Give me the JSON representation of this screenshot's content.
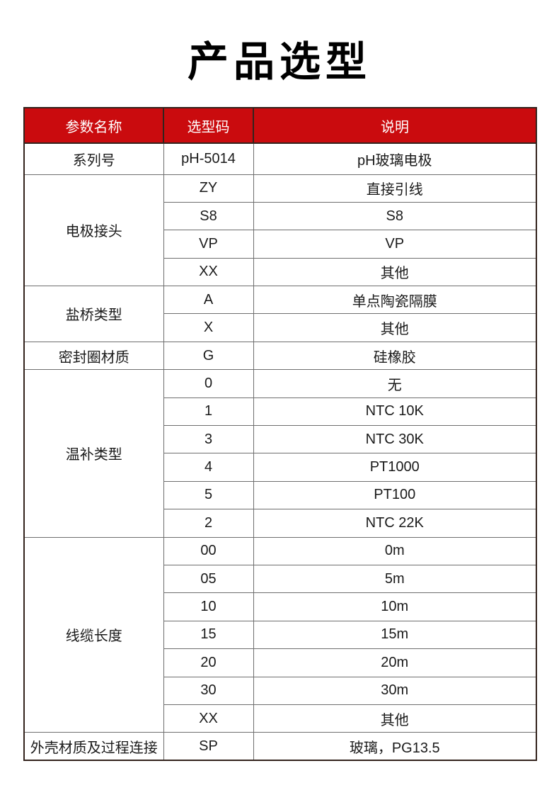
{
  "page": {
    "title": "产品选型"
  },
  "table": {
    "headers": [
      "参数名称",
      "选型码",
      "说明"
    ],
    "groups": [
      {
        "param": "系列号",
        "options": [
          {
            "code": "pH-5014",
            "desc": "pH玻璃电极"
          }
        ]
      },
      {
        "param": "电极接头",
        "options": [
          {
            "code": "ZY",
            "desc": "直接引线"
          },
          {
            "code": "S8",
            "desc": "S8"
          },
          {
            "code": "VP",
            "desc": "VP"
          },
          {
            "code": "XX",
            "desc": "其他"
          }
        ]
      },
      {
        "param": "盐桥类型",
        "options": [
          {
            "code": "A",
            "desc": "单点陶瓷隔膜"
          },
          {
            "code": "X",
            "desc": "其他"
          }
        ]
      },
      {
        "param": "密封圈材质",
        "options": [
          {
            "code": "G",
            "desc": "硅橡胶"
          }
        ]
      },
      {
        "param": "温补类型",
        "options": [
          {
            "code": "0",
            "desc": "无"
          },
          {
            "code": "1",
            "desc": "NTC 10K"
          },
          {
            "code": "3",
            "desc": "NTC 30K"
          },
          {
            "code": "4",
            "desc": "PT1000"
          },
          {
            "code": "5",
            "desc": "PT100"
          },
          {
            "code": "2",
            "desc": "NTC 22K"
          }
        ]
      },
      {
        "param": "线缆长度",
        "options": [
          {
            "code": "00",
            "desc": "0m"
          },
          {
            "code": "05",
            "desc": "5m"
          },
          {
            "code": "10",
            "desc": "10m"
          },
          {
            "code": "15",
            "desc": "15m"
          },
          {
            "code": "20",
            "desc": "20m"
          },
          {
            "code": "30",
            "desc": "30m"
          },
          {
            "code": "XX",
            "desc": "其他"
          }
        ]
      },
      {
        "param": "外壳材质及过程连接",
        "options": [
          {
            "code": "SP",
            "desc": "玻璃，PG13.5"
          }
        ]
      }
    ],
    "colors": {
      "header_bg": "#CA0B0E",
      "header_text": "#FFFFFF",
      "outer_border": "#33231D",
      "inner_border": "#6E6E6E",
      "body_text": "#1A1A1A"
    }
  }
}
